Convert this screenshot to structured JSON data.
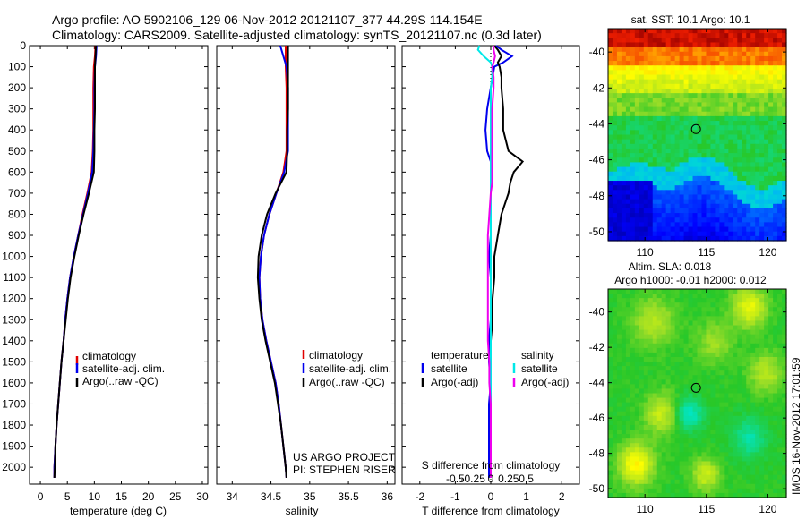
{
  "header": {
    "title_line1": "Argo profile: AO 5902106_129 06-Nov-2012 20121107_377 44.29S 114.154E",
    "title_line2": "Climatology: CARS2009. Satellite-adjusted climatology: synTS_20121107.nc (0.3d later)"
  },
  "colors": {
    "climatology": "#e00000",
    "satellite": "#0000ee",
    "argo": "#000000",
    "satellite_salinity": "#00e8e8",
    "argo_salinity": "#ee00ee"
  },
  "chart_data": [
    {
      "type": "line",
      "name": "temperature-profile",
      "xlabel": "temperature (deg C)",
      "ylabel": "",
      "xlim": [
        -2,
        31
      ],
      "ylim": [
        2080,
        0
      ],
      "xticks": [
        "0",
        "5",
        "10",
        "15",
        "20",
        "25",
        "30"
      ],
      "xtick_values": [
        0,
        5,
        10,
        15,
        20,
        25,
        30
      ],
      "yticks": [
        "0",
        "100",
        "200",
        "300",
        "400",
        "500",
        "600",
        "700",
        "800",
        "900",
        "1000",
        "1100",
        "1200",
        "1300",
        "1400",
        "1500",
        "1600",
        "1700",
        "1800",
        "1900",
        "2000"
      ],
      "ytick_values": [
        0,
        100,
        200,
        300,
        400,
        500,
        600,
        700,
        800,
        900,
        1000,
        1100,
        1200,
        1300,
        1400,
        1500,
        1600,
        1700,
        1800,
        1900,
        2000
      ],
      "depth": [
        0,
        50,
        100,
        200,
        300,
        400,
        500,
        600,
        700,
        800,
        900,
        1000,
        1100,
        1200,
        1300,
        1400,
        1500,
        1600,
        1700,
        1800,
        1900,
        2000,
        2050
      ],
      "series": [
        {
          "name": "climatology",
          "values": [
            10.2,
            10.1,
            9.9,
            9.8,
            9.8,
            9.8,
            9.7,
            9.5,
            8.7,
            7.8,
            7.0,
            6.2,
            5.5,
            5.0,
            4.6,
            4.3,
            3.9,
            3.6,
            3.3,
            3.0,
            2.8,
            2.6,
            2.6
          ]
        },
        {
          "name": "satellite-adj. clim.",
          "values": [
            10.4,
            10.3,
            10.1,
            10.0,
            10.0,
            9.9,
            9.8,
            9.6,
            8.8,
            7.9,
            7.0,
            6.2,
            5.5,
            5.0,
            4.6,
            4.3,
            3.9,
            3.6,
            3.3,
            3.0,
            2.8,
            2.6,
            2.6
          ]
        },
        {
          "name": "Argo(..raw -QC)",
          "values": [
            10.3,
            10.2,
            10.1,
            10.1,
            10.1,
            10.0,
            10.0,
            9.9,
            9.0,
            8.0,
            7.1,
            6.3,
            5.6,
            5.1,
            4.7,
            4.3,
            3.9,
            3.6,
            3.3,
            3.0,
            2.8,
            2.7,
            2.6
          ]
        }
      ],
      "legend": [
        "climatology",
        "satellite-adj. clim.",
        "Argo(..raw -QC)"
      ]
    },
    {
      "type": "line",
      "name": "salinity-profile",
      "xlabel": "salinity",
      "xlim": [
        33.8,
        36.1
      ],
      "ylim": [
        2080,
        0
      ],
      "xticks": [
        "34",
        "34.5",
        "35",
        "35.5",
        "36"
      ],
      "xtick_values": [
        34,
        34.5,
        35,
        35.5,
        36
      ],
      "depth": [
        0,
        50,
        100,
        200,
        300,
        400,
        500,
        600,
        700,
        800,
        900,
        1000,
        1100,
        1200,
        1300,
        1400,
        1500,
        1600,
        1700,
        1800,
        1900,
        2000,
        2050
      ],
      "series": [
        {
          "name": "climatology",
          "values": [
            34.69,
            34.69,
            34.69,
            34.7,
            34.7,
            34.7,
            34.7,
            34.66,
            34.57,
            34.48,
            34.41,
            34.37,
            34.35,
            34.36,
            34.39,
            34.44,
            34.5,
            34.56,
            34.6,
            34.63,
            34.66,
            34.69,
            34.7
          ]
        },
        {
          "name": "satellite-adj. clim.",
          "values": [
            34.62,
            34.66,
            34.7,
            34.72,
            34.72,
            34.72,
            34.72,
            34.67,
            34.57,
            34.48,
            34.41,
            34.37,
            34.35,
            34.36,
            34.39,
            34.44,
            34.5,
            34.56,
            34.6,
            34.63,
            34.66,
            34.69,
            34.7
          ]
        },
        {
          "name": "Argo(..raw -QC)",
          "values": [
            34.72,
            34.72,
            34.72,
            34.72,
            34.72,
            34.71,
            34.71,
            34.7,
            34.56,
            34.45,
            34.38,
            34.34,
            34.33,
            34.35,
            34.38,
            34.43,
            34.49,
            34.55,
            34.59,
            34.63,
            34.66,
            34.69,
            34.7
          ]
        }
      ],
      "legend": [
        "climatology",
        "satellite-adj. clim.",
        "Argo(..raw -QC)"
      ],
      "annotation": [
        "US ARGO PROJECT",
        "PI: STEPHEN RISER"
      ]
    },
    {
      "type": "line",
      "name": "difference-profile",
      "xlabel": "T difference from climatology",
      "xlabel_top": "S difference from climatology",
      "xlim": [
        -2.5,
        2.5
      ],
      "ylim": [
        2080,
        0
      ],
      "xticks": [
        "-2",
        "-1",
        "0",
        "1",
        "2"
      ],
      "xtick_values": [
        -2,
        -1,
        0,
        1,
        2
      ],
      "s_xticks": [
        "-0.5",
        "-0.25",
        "0",
        "0.25",
        "0.5"
      ],
      "s_xtick_values": [
        -0.5,
        -0.25,
        0,
        0.25,
        0.5
      ],
      "depth": [
        0,
        20,
        50,
        80,
        100,
        150,
        200,
        300,
        400,
        500,
        550,
        600,
        650,
        700,
        800,
        900,
        1000,
        1100,
        1200,
        1300,
        1400,
        1500,
        1600,
        1700,
        1800,
        1900,
        2000,
        2050
      ],
      "series": [
        {
          "name": "temperature satellite",
          "values": [
            0.15,
            0.3,
            0.6,
            0.35,
            0.1,
            0.05,
            0.0,
            -0.1,
            -0.15,
            -0.1,
            0.0,
            0.0,
            0.0,
            0.0,
            0.0,
            0.0,
            -0.05,
            0.0,
            0.0,
            0.0,
            -0.05,
            -0.05,
            0.0,
            -0.05,
            -0.05,
            -0.05,
            -0.05,
            -0.05
          ]
        },
        {
          "name": "temperature Argo(-adj)",
          "values": [
            0.1,
            0.2,
            0.3,
            0.2,
            0.25,
            0.3,
            0.3,
            0.35,
            0.35,
            0.5,
            0.9,
            0.65,
            0.55,
            0.5,
            0.3,
            0.2,
            0.1,
            0.1,
            0.05,
            0.05,
            0.0,
            0.0,
            0.0,
            0.0,
            0.0,
            0.0,
            0.0,
            0.0
          ]
        },
        {
          "name": "salinity satellite",
          "values": [
            -0.08,
            -0.09,
            -0.05,
            0.0,
            0.01,
            0.01,
            0.0,
            0.0,
            0.0,
            0.0,
            0.0,
            0.0,
            0.0,
            0.0,
            0.0,
            0.0,
            0.0,
            0.0,
            0.0,
            0.0,
            0.0,
            0.0,
            0.0,
            0.0,
            0.0,
            0.0,
            0.0,
            0.0
          ]
        },
        {
          "name": "salinity Argo(-adj)",
          "values": [
            0.02,
            0.02,
            0.03,
            0.02,
            0.01,
            0.02,
            0.02,
            0.01,
            0.01,
            0.01,
            0.01,
            0.01,
            0.01,
            0.0,
            -0.01,
            -0.02,
            -0.02,
            -0.02,
            -0.02,
            -0.02,
            -0.02,
            -0.01,
            -0.01,
            0.0,
            0.0,
            0.0,
            0.0,
            0.0
          ]
        }
      ],
      "legend_temperature": [
        "temperature",
        "satellite",
        "Argo(-adj)"
      ],
      "legend_salinity": [
        "salinity",
        "satellite",
        "Argo(-adj)"
      ]
    },
    {
      "type": "heatmap",
      "name": "sst-map",
      "title": "sat. SST: 10.1  Argo: 10.1",
      "xlim": [
        107,
        121.5
      ],
      "ylim": [
        -50.5,
        -38.7
      ],
      "xticks": [
        "110",
        "115",
        "120"
      ],
      "xtick_values": [
        110,
        115,
        120
      ],
      "yticks": [
        "-40",
        "-42",
        "-44",
        "-46",
        "-48",
        "-50"
      ],
      "ytick_values": [
        -40,
        -42,
        -44,
        -46,
        -48,
        -50
      ],
      "marker": {
        "lon": 114.154,
        "lat": -44.29
      }
    },
    {
      "type": "heatmap",
      "name": "sla-map",
      "title_line1": "Altim. SLA: 0.018",
      "title_line2": "Argo h1000: -0.01 h2000: 0.012",
      "xlim": [
        107,
        121.5
      ],
      "ylim": [
        -50.5,
        -38.7
      ],
      "xticks": [
        "110",
        "115",
        "120"
      ],
      "xtick_values": [
        110,
        115,
        120
      ],
      "yticks": [
        "-40",
        "-42",
        "-44",
        "-46",
        "-48",
        "-50"
      ],
      "ytick_values": [
        -40,
        -42,
        -44,
        -46,
        -48,
        -50
      ],
      "marker": {
        "lon": 114.154,
        "lat": -44.29
      },
      "side_label": "IMOS 16-Nov-2012 17:01:59"
    }
  ]
}
